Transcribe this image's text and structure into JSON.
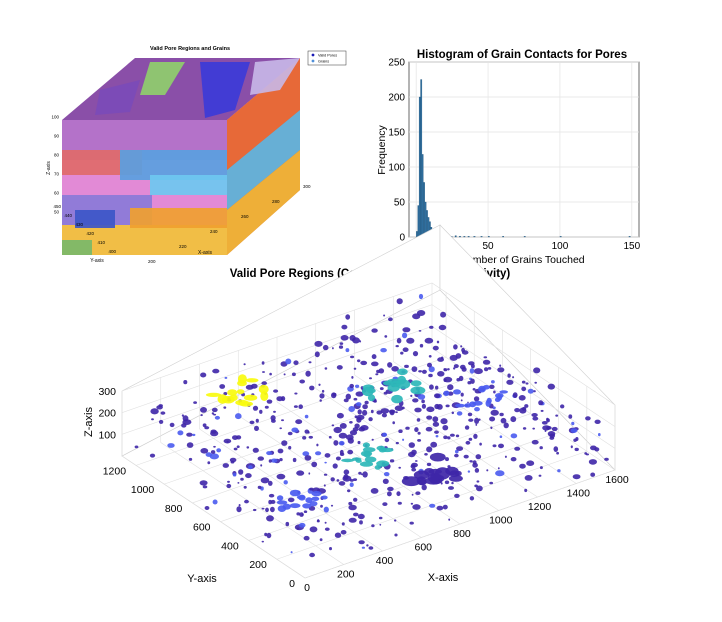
{
  "chart_data": [
    {
      "type": "scatter",
      "title": "Valid Pore Regions and Grains",
      "xlabel": "X-axis",
      "ylabel": "Y-axis",
      "zlabel": "Z-axis",
      "xlim": [
        200,
        300
      ],
      "ylim": [
        400,
        450
      ],
      "zlim": [
        50,
        100
      ],
      "x_ticks": [
        "200",
        "220",
        "240",
        "260",
        "280",
        "300"
      ],
      "y_ticks": [
        "400",
        "410",
        "420",
        "430",
        "440",
        "450"
      ],
      "z_ticks": [
        "50",
        "60",
        "70",
        "80",
        "90",
        "100"
      ],
      "legend": [
        {
          "label": "Valid Pores",
          "color": "#1a1ab4"
        },
        {
          "label": "Grains",
          "color": "#4f8fd8"
        }
      ],
      "legend_position": "top-right",
      "grid": false
    },
    {
      "type": "bar",
      "title": "Histogram of Grain Contacts for Pores",
      "xlabel": "Number of Grains Touched",
      "ylabel": "Frequency",
      "xlim": [
        -5,
        155
      ],
      "ylim": [
        0,
        250
      ],
      "x_ticks": [
        "0",
        "50",
        "100",
        "150"
      ],
      "y_ticks": [
        "0",
        "50",
        "100",
        "150",
        "200",
        "250"
      ],
      "bin_width": 1,
      "bin_starts": [
        0,
        1,
        2,
        3,
        4,
        5,
        6,
        7,
        8,
        9,
        10,
        11,
        12,
        13,
        14,
        15,
        16,
        17,
        18,
        19,
        20,
        22,
        24,
        27,
        30,
        33,
        36,
        40,
        45,
        50,
        60,
        75,
        100,
        148
      ],
      "values": [
        8,
        45,
        200,
        225,
        118,
        78,
        50,
        38,
        28,
        22,
        14,
        10,
        8,
        6,
        5,
        4,
        3,
        3,
        2,
        2,
        2,
        1,
        1,
        2,
        1,
        1,
        1,
        1,
        1,
        1,
        1,
        1,
        1,
        1
      ],
      "bar_color": "#2f6f9f",
      "grid": true
    },
    {
      "type": "scatter",
      "title": "Valid Pore Regions (Colored by Grain Connectivity)",
      "xlabel": "X-axis",
      "ylabel": "Y-axis",
      "zlabel": "Z-axis",
      "xlim": [
        0,
        1600
      ],
      "ylim": [
        0,
        1300
      ],
      "zlim": [
        0,
        300
      ],
      "x_ticks": [
        "0",
        "200",
        "400",
        "600",
        "800",
        "1000",
        "1200",
        "1400",
        "1600"
      ],
      "y_ticks": [
        "0",
        "200",
        "400",
        "600",
        "800",
        "1000",
        "1200"
      ],
      "z_ticks": [
        "100",
        "200",
        "300"
      ],
      "colormap": [
        "#3e26a8",
        "#4a5bf0",
        "#2eb7b8",
        "#a8d63a",
        "#f9fb0e"
      ],
      "grid": true
    }
  ]
}
